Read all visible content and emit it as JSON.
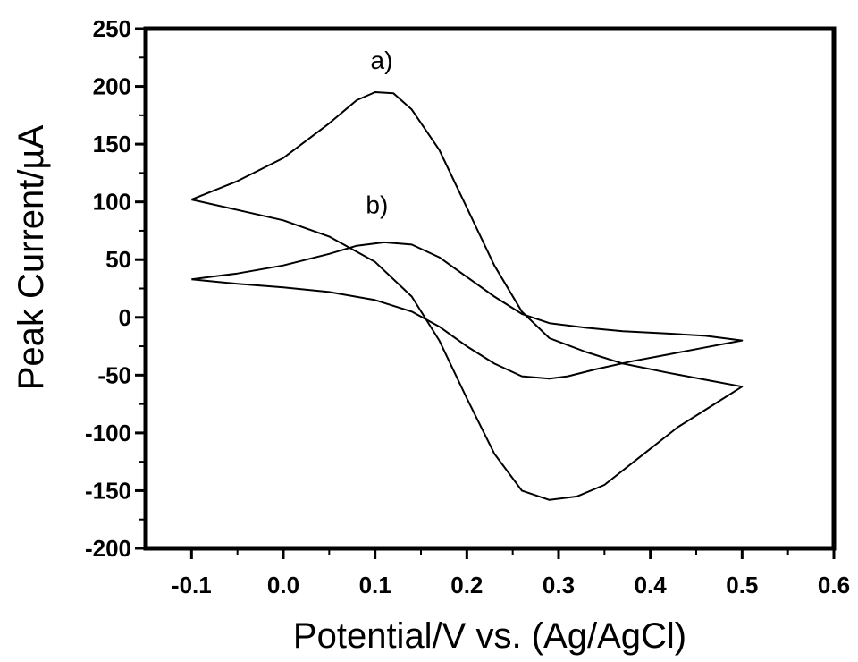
{
  "chart_data": {
    "type": "line",
    "xlabel": "Potential/V vs. (Ag/AgCl)",
    "ylabel": "Peak Current/µA",
    "xlim": [
      -0.15,
      0.6
    ],
    "ylim": [
      -200,
      250
    ],
    "xticks": [
      -0.1,
      0.0,
      0.1,
      0.2,
      0.3,
      0.4,
      0.5,
      0.6
    ],
    "xtick_labels": [
      "-0.1",
      "0.0",
      "0.1",
      "0.2",
      "0.3",
      "0.4",
      "0.5",
      "0.6"
    ],
    "yticks": [
      -200,
      -150,
      -100,
      -50,
      0,
      50,
      100,
      150,
      200,
      250
    ],
    "ytick_labels": [
      "-200",
      "-150",
      "-100",
      "-50",
      "0",
      "50",
      "100",
      "150",
      "200",
      "250"
    ],
    "grid": false,
    "annotations": [
      {
        "text": "a)",
        "x": 0.095,
        "y": 215
      },
      {
        "text": "b)",
        "x": 0.09,
        "y": 90
      }
    ],
    "series": [
      {
        "points": [
          [
            -0.1,
            102
          ],
          [
            -0.05,
            118
          ],
          [
            0.0,
            138
          ],
          [
            0.05,
            168
          ],
          [
            0.08,
            188
          ],
          [
            0.1,
            195
          ],
          [
            0.12,
            194
          ],
          [
            0.14,
            180
          ],
          [
            0.17,
            145
          ],
          [
            0.2,
            95
          ],
          [
            0.23,
            45
          ],
          [
            0.26,
            5
          ],
          [
            0.29,
            -18
          ],
          [
            0.33,
            -30
          ],
          [
            0.37,
            -40
          ],
          [
            0.42,
            -48
          ],
          [
            0.46,
            -54
          ],
          [
            0.5,
            -60
          ],
          [
            0.47,
            -75
          ],
          [
            0.43,
            -95
          ],
          [
            0.39,
            -120
          ],
          [
            0.35,
            -145
          ],
          [
            0.32,
            -155
          ],
          [
            0.29,
            -158
          ],
          [
            0.26,
            -150
          ],
          [
            0.23,
            -118
          ],
          [
            0.2,
            -70
          ],
          [
            0.17,
            -20
          ],
          [
            0.14,
            18
          ],
          [
            0.1,
            48
          ],
          [
            0.05,
            70
          ],
          [
            0.0,
            84
          ],
          [
            -0.05,
            93
          ],
          [
            -0.1,
            102
          ]
        ]
      },
      {
        "points": [
          [
            -0.1,
            33
          ],
          [
            -0.05,
            38
          ],
          [
            0.0,
            45
          ],
          [
            0.05,
            55
          ],
          [
            0.08,
            62
          ],
          [
            0.11,
            65
          ],
          [
            0.14,
            63
          ],
          [
            0.17,
            52
          ],
          [
            0.2,
            35
          ],
          [
            0.23,
            18
          ],
          [
            0.26,
            3
          ],
          [
            0.29,
            -5
          ],
          [
            0.33,
            -9
          ],
          [
            0.37,
            -12
          ],
          [
            0.42,
            -14
          ],
          [
            0.46,
            -16
          ],
          [
            0.5,
            -20
          ],
          [
            0.46,
            -26
          ],
          [
            0.42,
            -32
          ],
          [
            0.38,
            -38
          ],
          [
            0.34,
            -45
          ],
          [
            0.31,
            -51
          ],
          [
            0.29,
            -53
          ],
          [
            0.26,
            -51
          ],
          [
            0.23,
            -40
          ],
          [
            0.2,
            -25
          ],
          [
            0.17,
            -8
          ],
          [
            0.14,
            5
          ],
          [
            0.1,
            15
          ],
          [
            0.05,
            22
          ],
          [
            0.0,
            26
          ],
          [
            -0.05,
            29
          ],
          [
            -0.1,
            33
          ]
        ]
      }
    ]
  }
}
